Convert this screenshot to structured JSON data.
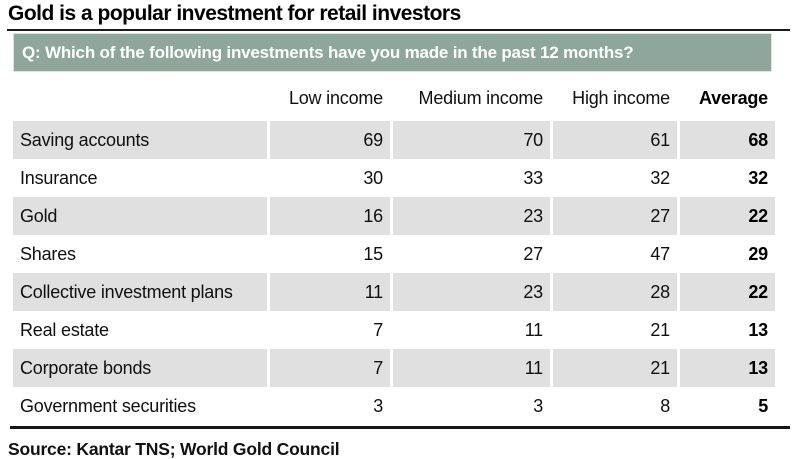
{
  "title": "Gold is a popular investment for retail investors",
  "question_banner": "Q: Which of the following investments have you made in the past 12 months?",
  "source": "Source: Kantar TNS; World Gold Council",
  "colors": {
    "banner_bg": "#8fa69a",
    "banner_text": "#ffffff",
    "row_alt_bg": "#e0e0e0",
    "rule": "#1a1a1a"
  },
  "chart_data": {
    "type": "table",
    "title": "Gold is a popular investment for retail investors",
    "subtitle": "Q: Which of the following investments have you made in the past 12 months?",
    "columns": [
      "",
      "Low income",
      "Medium income",
      "High income",
      "Average"
    ],
    "categories": [
      "Saving accounts",
      "Insurance",
      "Gold",
      "Shares",
      "Collective investment plans",
      "Real estate",
      "Corporate bonds",
      "Government securities"
    ],
    "series": [
      {
        "name": "Low income",
        "values": [
          69,
          30,
          16,
          15,
          11,
          7,
          7,
          3
        ]
      },
      {
        "name": "Medium income",
        "values": [
          70,
          33,
          23,
          27,
          23,
          11,
          11,
          3
        ]
      },
      {
        "name": "High income",
        "values": [
          61,
          32,
          27,
          47,
          28,
          21,
          21,
          8
        ]
      },
      {
        "name": "Average",
        "values": [
          68,
          32,
          22,
          29,
          22,
          13,
          13,
          5
        ]
      }
    ],
    "layout": {
      "alternating_row_shading": true,
      "shaded_rows": "odd (1st, 3rd, 5th, 7th)",
      "value_alignment": "right",
      "bold_column": "Average"
    },
    "source": "Source: Kantar TNS; World Gold Council"
  }
}
